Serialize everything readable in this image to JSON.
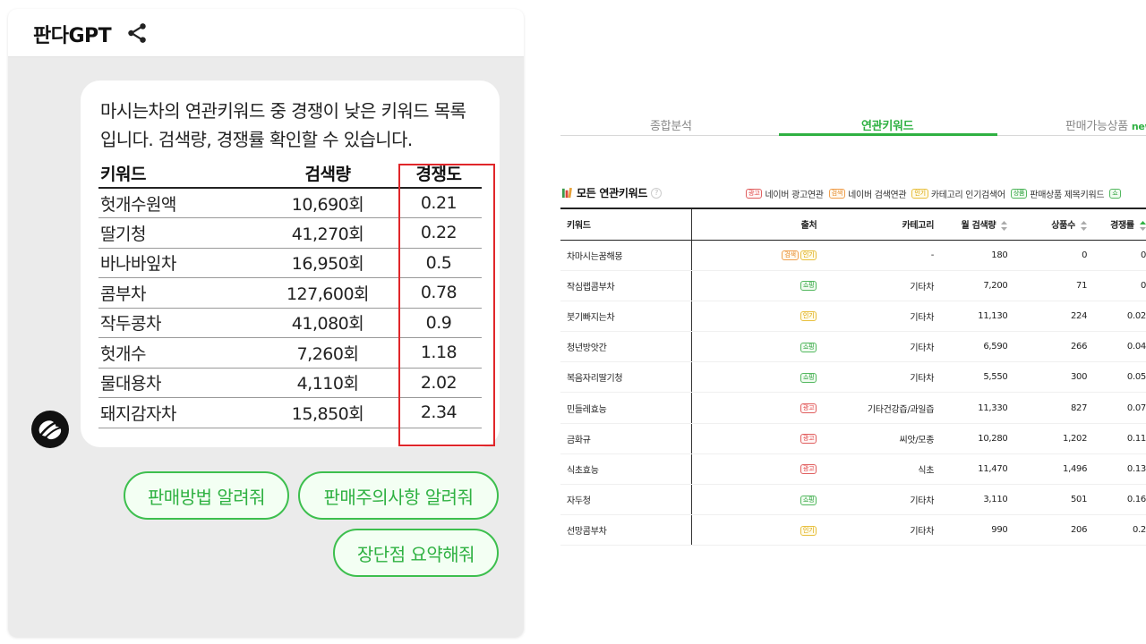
{
  "chat": {
    "title": "판다GPT",
    "message": "마시는차의 연관키워드 중 경쟁이 낮은 키워드 목록입니다. 검색량, 경쟁률 확인할 수 있습니다.",
    "table": {
      "headers": [
        "키워드",
        "검색량",
        "경쟁도"
      ],
      "rows": [
        [
          "헛개수원액",
          "10,690회",
          "0.21"
        ],
        [
          "딸기청",
          "41,270회",
          "0.22"
        ],
        [
          "바나바잎차",
          "16,950회",
          "0.5"
        ],
        [
          "콤부차",
          "127,600회",
          "0.78"
        ],
        [
          "작두콩차",
          "41,080회",
          "0.9"
        ],
        [
          "헛개수",
          "7,260회",
          "1.18"
        ],
        [
          "물대용차",
          "4,110회",
          "2.02"
        ],
        [
          "돼지감자차",
          "15,850회",
          "2.34"
        ]
      ]
    },
    "suggestions": [
      "판매방법 알려줘",
      "판매주의사항 알려줘",
      "장단점 요약해줘"
    ],
    "colors": {
      "accent": "#2fb142",
      "highlight": "#e0262a"
    }
  },
  "panel": {
    "tabs": [
      {
        "label": "종합분석"
      },
      {
        "label": "연관키워드",
        "active": true
      },
      {
        "label": "판매가능상품",
        "badge": "new"
      }
    ],
    "section_title": "모든 연관키워드",
    "help_glyph": "?",
    "legend": [
      {
        "tag": "광고",
        "label": "네이버 광고연관",
        "type": "ad"
      },
      {
        "tag": "검색",
        "label": "네이버 검색연관",
        "type": "search"
      },
      {
        "tag": "인기",
        "label": "카테고리 인기검색어",
        "type": "popular"
      },
      {
        "tag": "상품",
        "label": "판매상품 제목키워드",
        "type": "product"
      },
      {
        "tag": "쇼",
        "label": "",
        "type": "shop"
      }
    ],
    "table": {
      "headers": [
        "키워드",
        "출처",
        "카테고리",
        "월 검색량",
        "상품수",
        "경쟁률"
      ],
      "rows": [
        {
          "keyword": "차마시는꿈해몽",
          "tags": [
            {
              "t": "검색",
              "type": "search"
            },
            {
              "t": "인기",
              "type": "popular"
            }
          ],
          "category": "-",
          "volume": "180",
          "count": "0",
          "comp": "0"
        },
        {
          "keyword": "작심랩콤부차",
          "tags": [
            {
              "t": "쇼핑",
              "type": "shop"
            }
          ],
          "category": "기타차",
          "volume": "7,200",
          "count": "71",
          "comp": "0"
        },
        {
          "keyword": "붓기빠지는차",
          "tags": [
            {
              "t": "인기",
              "type": "popular"
            }
          ],
          "category": "기타차",
          "volume": "11,130",
          "count": "224",
          "comp": "0.02"
        },
        {
          "keyword": "청년방앗간",
          "tags": [
            {
              "t": "쇼핑",
              "type": "shop"
            }
          ],
          "category": "기타차",
          "volume": "6,590",
          "count": "266",
          "comp": "0.04"
        },
        {
          "keyword": "복음자리딸기청",
          "tags": [
            {
              "t": "쇼핑",
              "type": "shop"
            }
          ],
          "category": "기타차",
          "volume": "5,550",
          "count": "300",
          "comp": "0.05"
        },
        {
          "keyword": "민들레효능",
          "tags": [
            {
              "t": "광고",
              "type": "ad"
            }
          ],
          "category": "기타건강즙/과일즙",
          "volume": "11,330",
          "count": "827",
          "comp": "0.07"
        },
        {
          "keyword": "금화규",
          "tags": [
            {
              "t": "광고",
              "type": "ad"
            }
          ],
          "category": "씨앗/모종",
          "volume": "10,280",
          "count": "1,202",
          "comp": "0.11"
        },
        {
          "keyword": "식초효능",
          "tags": [
            {
              "t": "광고",
              "type": "ad"
            }
          ],
          "category": "식초",
          "volume": "11,470",
          "count": "1,496",
          "comp": "0.13"
        },
        {
          "keyword": "자두청",
          "tags": [
            {
              "t": "쇼핑",
              "type": "shop"
            }
          ],
          "category": "기타차",
          "volume": "3,110",
          "count": "501",
          "comp": "0.16"
        },
        {
          "keyword": "선망콤부차",
          "tags": [
            {
              "t": "인기",
              "type": "popular"
            }
          ],
          "category": "기타차",
          "volume": "990",
          "count": "206",
          "comp": "0.2"
        }
      ]
    }
  }
}
